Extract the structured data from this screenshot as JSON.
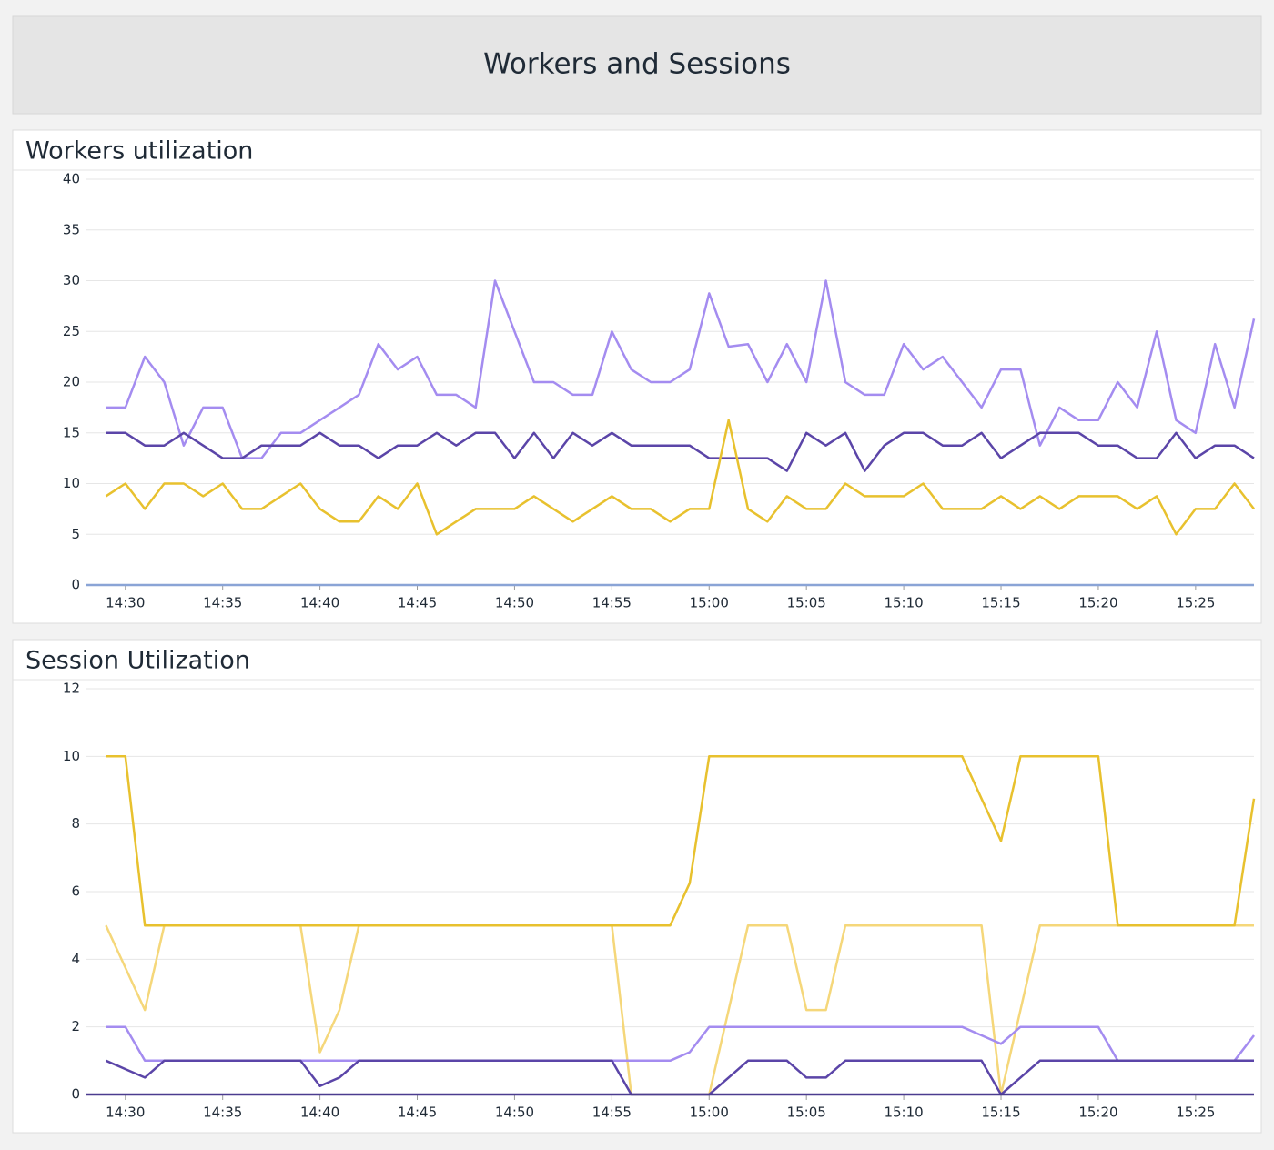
{
  "title": "Workers and Sessions",
  "chart_data": [
    {
      "type": "line",
      "title": "Workers utilization",
      "x": [
        "14:29",
        "14:30",
        "14:31",
        "14:32",
        "14:33",
        "14:34",
        "14:35",
        "14:36",
        "14:37",
        "14:38",
        "14:39",
        "14:40",
        "14:41",
        "14:42",
        "14:43",
        "14:44",
        "14:45",
        "14:46",
        "14:47",
        "14:48",
        "14:49",
        "14:50",
        "14:51",
        "14:52",
        "14:53",
        "14:54",
        "14:55",
        "14:56",
        "14:57",
        "14:58",
        "14:59",
        "15:00",
        "15:01",
        "15:02",
        "15:03",
        "15:04",
        "15:05",
        "15:06",
        "15:07",
        "15:08",
        "15:09",
        "15:10",
        "15:11",
        "15:12",
        "15:13",
        "15:14",
        "15:15",
        "15:16",
        "15:17",
        "15:18",
        "15:19",
        "15:20",
        "15:21",
        "15:22",
        "15:23",
        "15:24",
        "15:25",
        "15:26",
        "15:27",
        "15:28"
      ],
      "xlim": [
        "14:28",
        "15:28"
      ],
      "xticks": [
        "14:30",
        "14:35",
        "14:40",
        "14:45",
        "14:50",
        "14:55",
        "15:00",
        "15:05",
        "15:10",
        "15:15",
        "15:20",
        "15:25"
      ],
      "ylim": [
        0,
        40
      ],
      "yticks": [
        0,
        5,
        10,
        15,
        20,
        25,
        30,
        35,
        40
      ],
      "grid": true,
      "baseline_color": "#8aa4d6",
      "series": [
        {
          "color": "#a48cf0",
          "values": [
            17.5,
            17.5,
            22.5,
            20,
            13.75,
            17.5,
            17.5,
            12.5,
            12.5,
            15,
            15,
            16.25,
            17.5,
            18.75,
            23.75,
            21.25,
            22.5,
            18.75,
            18.75,
            17.5,
            30,
            25,
            20,
            20,
            18.75,
            18.75,
            25,
            21.25,
            20,
            20,
            21.25,
            28.75,
            23.5,
            23.75,
            20,
            23.75,
            20,
            30,
            20,
            18.75,
            18.75,
            23.75,
            21.25,
            22.5,
            20,
            17.5,
            21.25,
            21.25,
            13.75,
            17.5,
            16.25,
            16.25,
            20,
            17.5,
            25,
            16.25,
            15,
            23.75,
            17.5,
            26.25
          ]
        },
        {
          "color": "#5b45a8",
          "values": [
            15,
            15,
            13.75,
            13.75,
            15,
            13.75,
            12.5,
            12.5,
            13.75,
            13.75,
            13.75,
            15,
            13.75,
            13.75,
            12.5,
            13.75,
            13.75,
            15,
            13.75,
            15,
            15,
            12.5,
            15,
            12.5,
            15,
            13.75,
            15,
            13.75,
            13.75,
            13.75,
            13.75,
            12.5,
            12.5,
            12.5,
            12.5,
            11.25,
            15,
            13.75,
            15,
            11.25,
            13.75,
            15,
            15,
            13.75,
            13.75,
            15,
            12.5,
            13.75,
            15,
            15,
            15,
            13.75,
            13.75,
            12.5,
            12.5,
            15,
            12.5,
            13.75,
            13.75,
            12.5
          ]
        },
        {
          "color": "#e8c12e",
          "values": [
            8.75,
            10,
            7.5,
            10,
            10,
            8.75,
            10,
            7.5,
            7.5,
            8.75,
            10,
            7.5,
            6.25,
            6.25,
            8.75,
            7.5,
            10,
            5,
            6.25,
            7.5,
            7.5,
            7.5,
            8.75,
            7.5,
            6.25,
            7.5,
            8.75,
            7.5,
            7.5,
            6.25,
            7.5,
            7.5,
            16.25,
            7.5,
            6.25,
            8.75,
            7.5,
            7.5,
            10,
            8.75,
            8.75,
            8.75,
            10,
            7.5,
            7.5,
            7.5,
            8.75,
            7.5,
            8.75,
            7.5,
            8.75,
            8.75,
            8.75,
            7.5,
            8.75,
            5,
            7.5,
            7.5,
            10,
            7.5
          ]
        }
      ]
    },
    {
      "type": "line",
      "title": "Session Utilization",
      "x": [
        "14:29",
        "14:30",
        "14:31",
        "14:32",
        "14:33",
        "14:34",
        "14:35",
        "14:36",
        "14:37",
        "14:38",
        "14:39",
        "14:40",
        "14:41",
        "14:42",
        "14:43",
        "14:44",
        "14:45",
        "14:46",
        "14:47",
        "14:48",
        "14:49",
        "14:50",
        "14:51",
        "14:52",
        "14:53",
        "14:54",
        "14:55",
        "14:56",
        "14:57",
        "14:58",
        "14:59",
        "15:00",
        "15:01",
        "15:02",
        "15:03",
        "15:04",
        "15:05",
        "15:06",
        "15:07",
        "15:08",
        "15:09",
        "15:10",
        "15:11",
        "15:12",
        "15:13",
        "15:14",
        "15:15",
        "15:16",
        "15:17",
        "15:18",
        "15:19",
        "15:20",
        "15:21",
        "15:22",
        "15:23",
        "15:24",
        "15:25",
        "15:26",
        "15:27",
        "15:28"
      ],
      "xlim": [
        "14:28",
        "15:28"
      ],
      "xticks": [
        "14:30",
        "14:35",
        "14:40",
        "14:45",
        "14:50",
        "14:55",
        "15:00",
        "15:05",
        "15:10",
        "15:15",
        "15:20",
        "15:25"
      ],
      "ylim": [
        0,
        12
      ],
      "yticks": [
        0,
        2,
        4,
        6,
        8,
        10,
        12
      ],
      "grid": true,
      "baseline_color": "#4b3c8f",
      "series": [
        {
          "color": "#f5d77a",
          "values": [
            5,
            3.75,
            2.5,
            5,
            5,
            5,
            5,
            5,
            5,
            5,
            5,
            1.25,
            2.5,
            5,
            5,
            5,
            5,
            5,
            5,
            5,
            5,
            5,
            5,
            5,
            5,
            5,
            5,
            0,
            0,
            0,
            0,
            0,
            2.5,
            5,
            5,
            5,
            2.5,
            2.5,
            5,
            5,
            5,
            5,
            5,
            5,
            5,
            5,
            0,
            2.5,
            5,
            5,
            5,
            5,
            5,
            5,
            5,
            5,
            5,
            5,
            5,
            5
          ]
        },
        {
          "color": "#e8c12e",
          "values": [
            10,
            10,
            5,
            5,
            5,
            5,
            5,
            5,
            5,
            5,
            5,
            5,
            5,
            5,
            5,
            5,
            5,
            5,
            5,
            5,
            5,
            5,
            5,
            5,
            5,
            5,
            5,
            5,
            5,
            5,
            6.25,
            10,
            10,
            10,
            10,
            10,
            10,
            10,
            10,
            10,
            10,
            10,
            10,
            10,
            10,
            8.75,
            7.5,
            10,
            10,
            10,
            10,
            10,
            5,
            5,
            5,
            5,
            5,
            5,
            5,
            8.75
          ]
        },
        {
          "color": "#a48cf0",
          "values": [
            2,
            2,
            1,
            1,
            1,
            1,
            1,
            1,
            1,
            1,
            1,
            1,
            1,
            1,
            1,
            1,
            1,
            1,
            1,
            1,
            1,
            1,
            1,
            1,
            1,
            1,
            1,
            1,
            1,
            1,
            1.25,
            2,
            2,
            2,
            2,
            2,
            2,
            2,
            2,
            2,
            2,
            2,
            2,
            2,
            2,
            1.75,
            1.5,
            2,
            2,
            2,
            2,
            2,
            1,
            1,
            1,
            1,
            1,
            1,
            1,
            1.75
          ]
        },
        {
          "color": "#5b45a8",
          "values": [
            1,
            0.75,
            0.5,
            1,
            1,
            1,
            1,
            1,
            1,
            1,
            1,
            0.25,
            0.5,
            1,
            1,
            1,
            1,
            1,
            1,
            1,
            1,
            1,
            1,
            1,
            1,
            1,
            1,
            0,
            0,
            0,
            0,
            0,
            0.5,
            1,
            1,
            1,
            0.5,
            0.5,
            1,
            1,
            1,
            1,
            1,
            1,
            1,
            1,
            0,
            0.5,
            1,
            1,
            1,
            1,
            1,
            1,
            1,
            1,
            1,
            1,
            1,
            1
          ]
        }
      ]
    }
  ]
}
